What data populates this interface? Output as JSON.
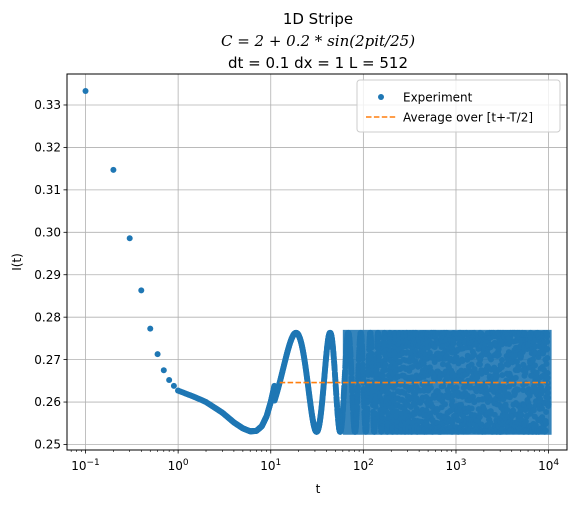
{
  "chart_data": {
    "type": "scatter",
    "title_lines": [
      "1D Stripe",
      "C = 2 + 0.2 * sin(2pit/25)",
      "dt = 0.1 dx = 1 L = 512"
    ],
    "xlabel": "t",
    "ylabel": "I(t)",
    "xscale": "log",
    "xlim": [
      0.0631,
      15800
    ],
    "ylim": [
      0.2487,
      0.3373
    ],
    "x_ticks": [
      {
        "value": 0.1,
        "base": "10",
        "exp": "−1"
      },
      {
        "value": 1,
        "base": "10",
        "exp": "0"
      },
      {
        "value": 10,
        "base": "10",
        "exp": "1"
      },
      {
        "value": 100,
        "base": "10",
        "exp": "2"
      },
      {
        "value": 1000,
        "base": "10",
        "exp": "3"
      },
      {
        "value": 10000,
        "base": "10",
        "exp": "4"
      }
    ],
    "y_ticks": [
      "0.25",
      "0.26",
      "0.27",
      "0.28",
      "0.29",
      "0.30",
      "0.31",
      "0.32",
      "0.33"
    ],
    "grid": true,
    "legend_placement": "top-right",
    "series": [
      {
        "name": "Experiment",
        "style": "markers",
        "color": "#1f77b4",
        "early_points": {
          "x": [
            0.1,
            0.2,
            0.3,
            0.4,
            0.5,
            0.6,
            0.7,
            0.8,
            0.9,
            1.0
          ],
          "y": [
            0.3333,
            0.3147,
            0.2986,
            0.2863,
            0.2773,
            0.2713,
            0.2675,
            0.2652,
            0.2638,
            0.2627
          ]
        },
        "relaxation": {
          "x": [
            1.0,
            1.5,
            2.0,
            3.0,
            4.0,
            5.0,
            6.0,
            7.0,
            8.0,
            9.0,
            10.0,
            11.0
          ],
          "y": [
            0.2627,
            0.2612,
            0.26,
            0.2575,
            0.2552,
            0.2538,
            0.2531,
            0.2532,
            0.2543,
            0.2566,
            0.26,
            0.264
          ]
        },
        "oscillation": {
          "period": 25,
          "min": 0.253,
          "max": 0.2763,
          "start_t": 11,
          "end_t": 10000,
          "first_peak_t": 18.75
        }
      },
      {
        "name": "Average over [t+-T/2]",
        "style": "dashed",
        "color": "#ff7f0e",
        "x": [
          12.5,
          10000
        ],
        "y": [
          0.2646,
          0.2646
        ]
      }
    ]
  }
}
